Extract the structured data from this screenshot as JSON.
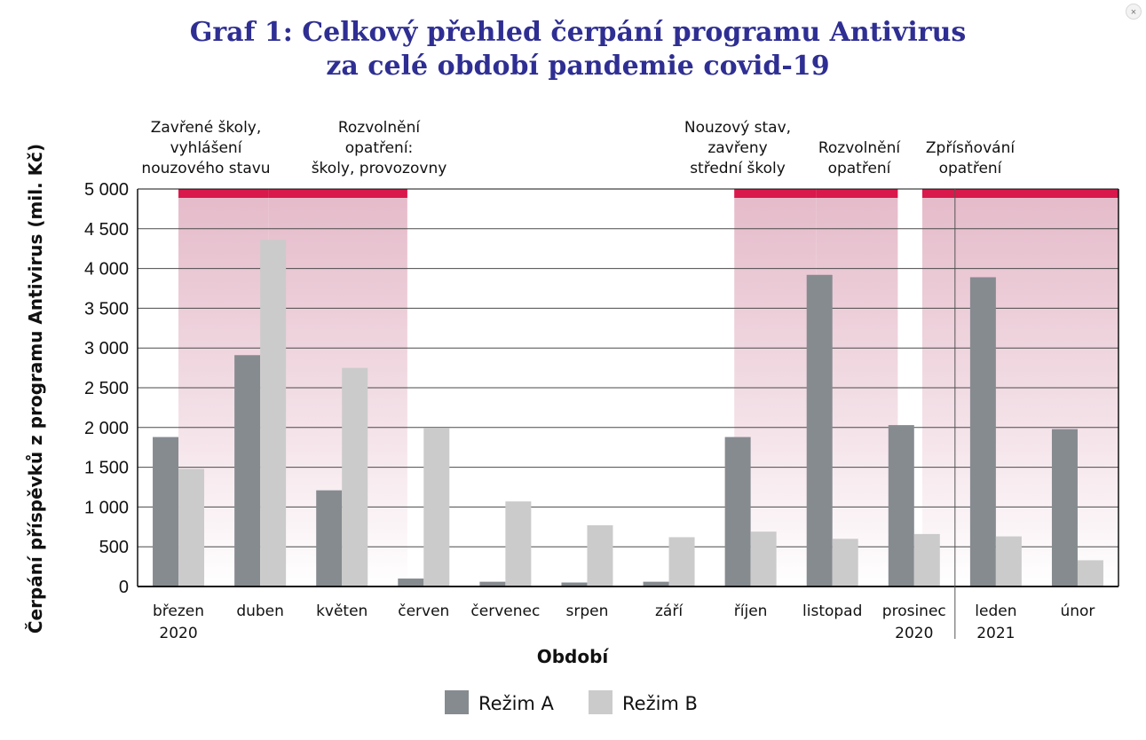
{
  "title": {
    "line1": "Graf 1: Celkový přehled čerpání programu Antivirus",
    "line2": "za celé období pandemie covid-19"
  },
  "close_icon": "×",
  "colors": {
    "title": "#2e2e93",
    "rezim_a": "#868b90",
    "rezim_b": "#cbcbcb",
    "phase_bar": "#d9184b",
    "phase_shade_top": "#e6bccb"
  },
  "chart_data": {
    "type": "bar",
    "title": "Graf 1: Celkový přehled čerpání programu Antivirus za celé období pandemie covid-19",
    "xlabel": "Období",
    "ylabel": "Čerpání příspěvků z programu Antivirus (mil. Kč)",
    "ylim": [
      0,
      5000
    ],
    "yticks": [
      0,
      500,
      1000,
      1500,
      2000,
      2500,
      3000,
      3500,
      4000,
      4500,
      5000
    ],
    "ytick_labels": [
      "0",
      "500",
      "1 000",
      "1 500",
      "2 000",
      "2 500",
      "3 000",
      "3 500",
      "4 000",
      "4 500",
      "5 000"
    ],
    "grid": true,
    "categories": [
      [
        "březen",
        "2020"
      ],
      [
        "duben"
      ],
      [
        "květen"
      ],
      [
        "červen"
      ],
      [
        "červenec"
      ],
      [
        "srpen"
      ],
      [
        "září"
      ],
      [
        "říjen"
      ],
      [
        "listopad"
      ],
      [
        "prosinec",
        "2020"
      ],
      [
        "leden",
        "2021"
      ],
      [
        "únor"
      ]
    ],
    "series": [
      {
        "name": "Režim A",
        "values": [
          1880,
          2910,
          1210,
          100,
          60,
          50,
          60,
          1880,
          3920,
          2030,
          3890,
          1980
        ]
      },
      {
        "name": "Režim B",
        "values": [
          1480,
          4360,
          2750,
          1990,
          1070,
          770,
          620,
          690,
          600,
          660,
          630,
          330
        ]
      }
    ],
    "phases": [
      {
        "label": [
          "Zavřené školy,",
          "vyhlášení",
          "nouzového stavu"
        ],
        "from": 0,
        "to": 1.6
      },
      {
        "label": [
          "Rozvolnění",
          "opatření:",
          "školy, provozovny"
        ],
        "from": 1.6,
        "to": 3.3
      },
      {
        "label": [
          "Nouzový stav,",
          "zavřeny",
          "střední školy"
        ],
        "from": 7.3,
        "to": 8.3
      },
      {
        "label": [
          "Rozvolnění",
          "opatření"
        ],
        "from": 8.3,
        "to": 9.3
      },
      {
        "label": [
          "Zpřísňování",
          "opatření"
        ],
        "from": 9.6,
        "to": 12.0
      }
    ],
    "year_separator_after_index": 9,
    "legend": {
      "position": "bottom-center",
      "entries": [
        "Režim A",
        "Režim B"
      ]
    }
  }
}
